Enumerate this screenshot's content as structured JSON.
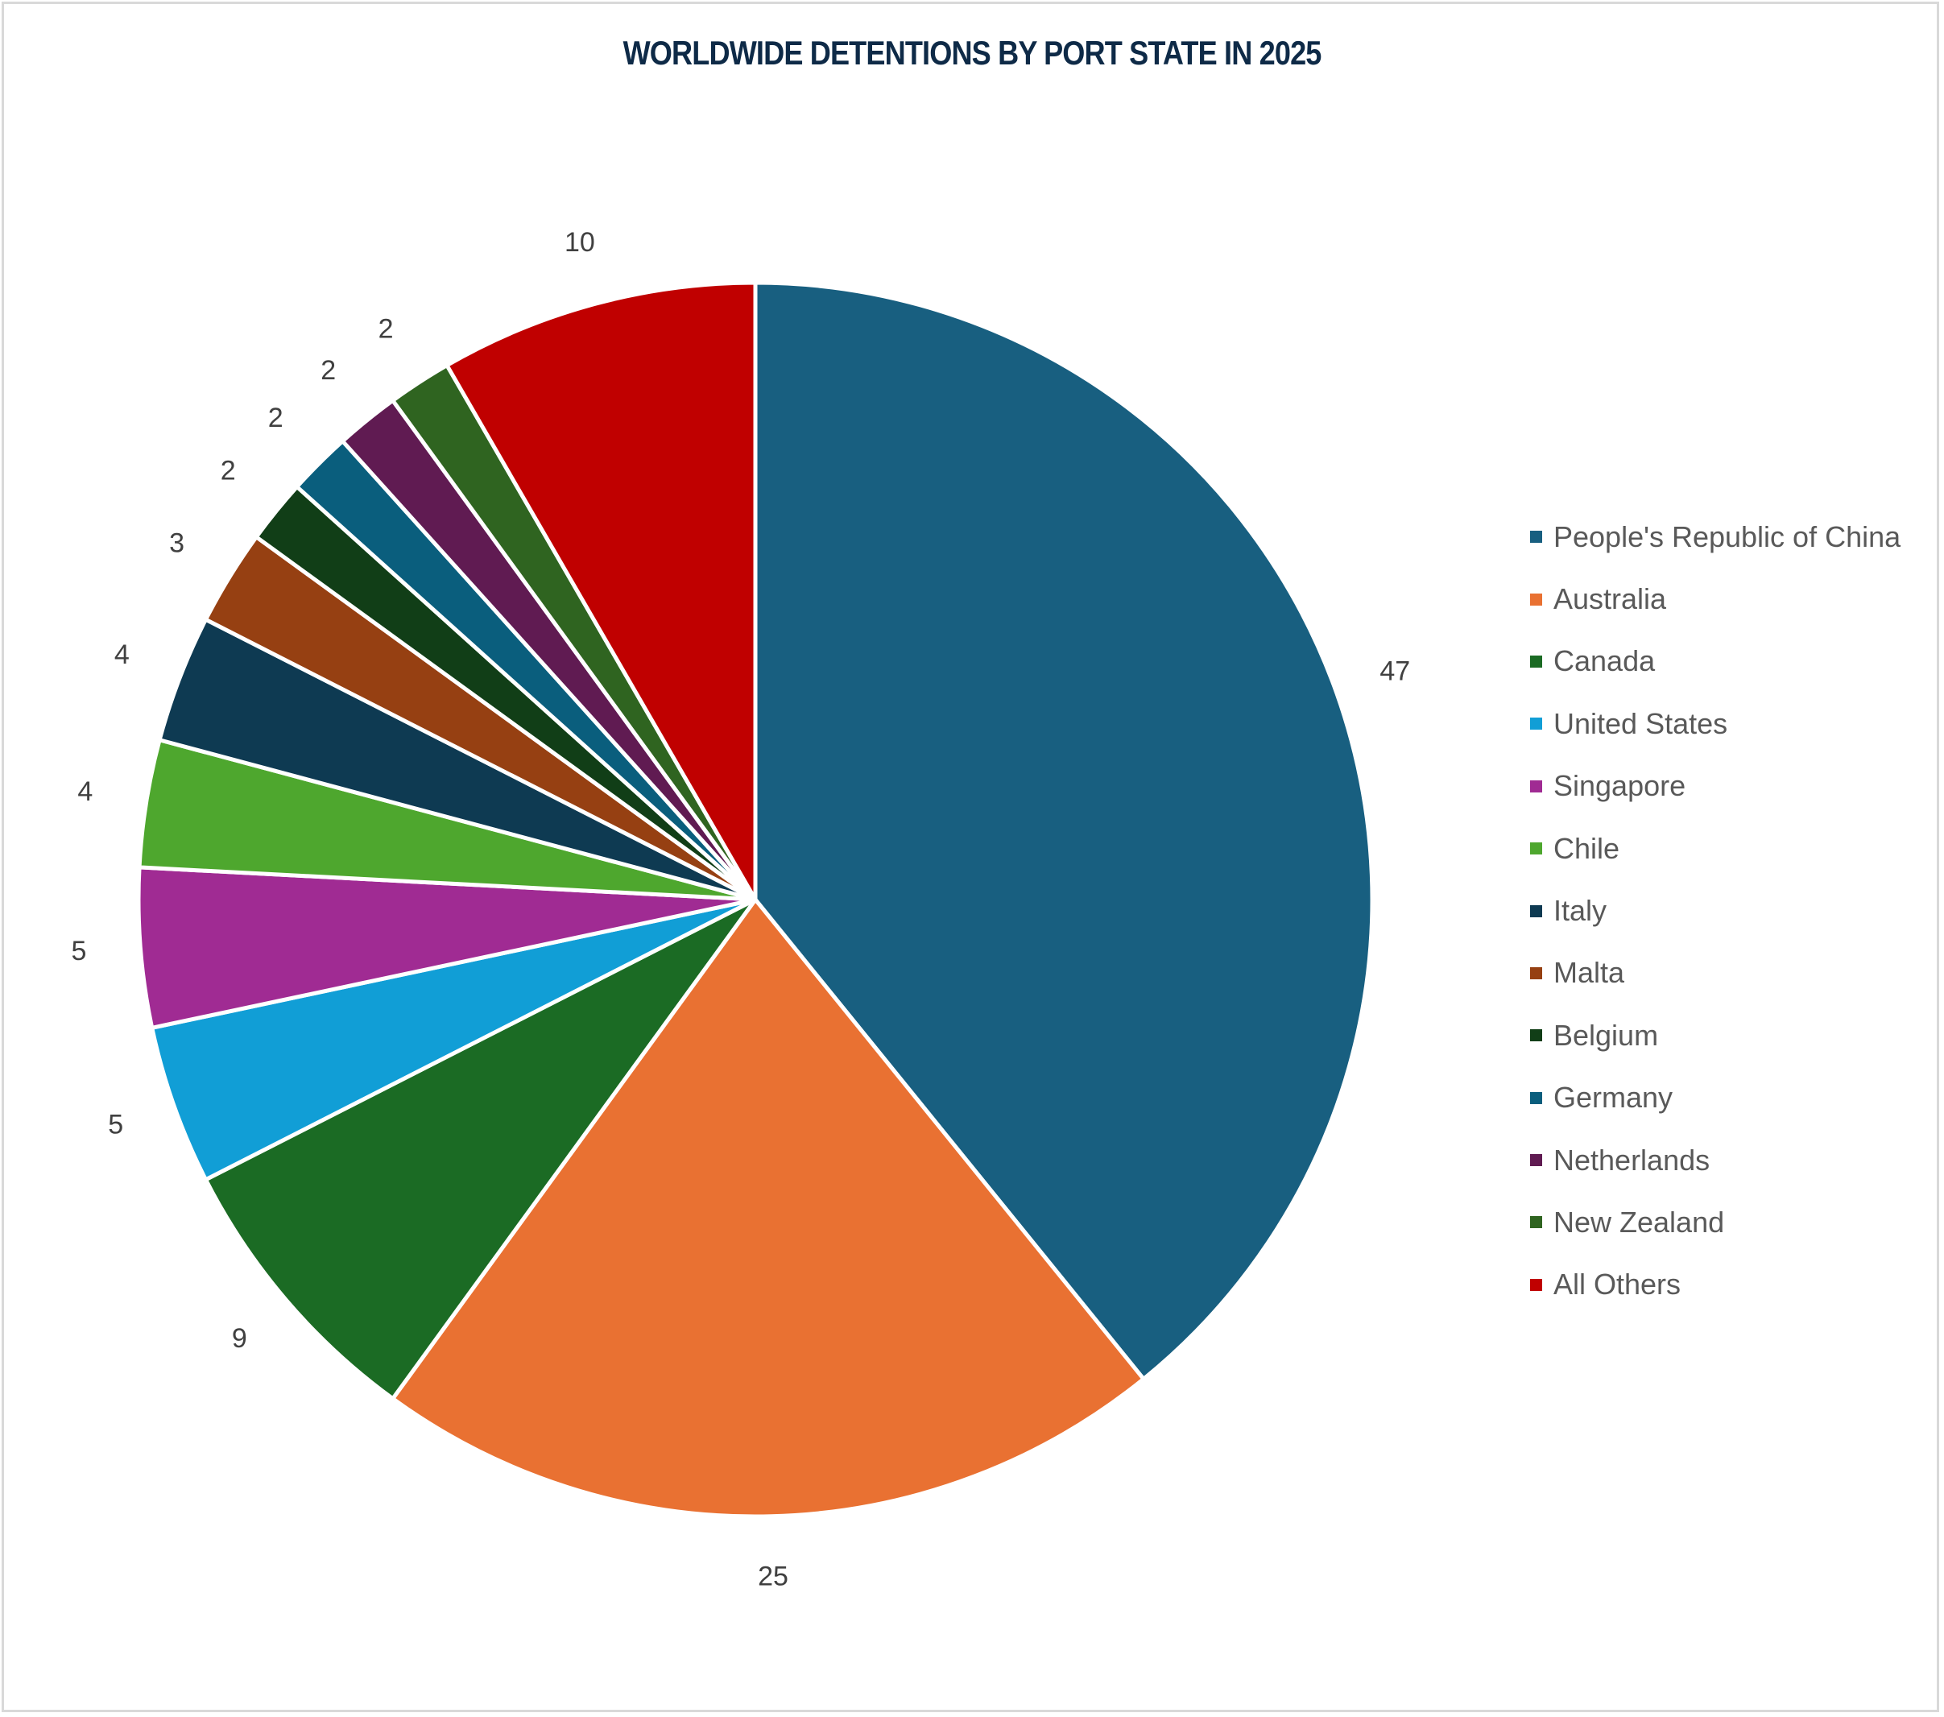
{
  "chart_data": {
    "type": "pie",
    "title": "WORLDWIDE DETENTIONS BY PORT STATE IN 2025",
    "legend_position": "right",
    "categories": [
      "People's Republic of China",
      "Australia",
      "Canada",
      "United States",
      "Singapore",
      "Chile",
      "Italy",
      "Malta",
      "Belgium",
      "Germany",
      "Netherlands",
      "New Zealand",
      "All Others"
    ],
    "values": [
      47,
      25,
      9,
      5,
      5,
      4,
      4,
      3,
      2,
      2,
      2,
      2,
      10
    ],
    "colors": [
      "#185f80",
      "#e97132",
      "#1b6b24",
      "#119ed6",
      "#a02b93",
      "#4ea72e",
      "#0e3a52",
      "#964012",
      "#113e17",
      "#0a5e7d",
      "#601b52",
      "#2f6420",
      "#c00000"
    ],
    "data_labels": [
      "47",
      "25",
      "9",
      "5",
      "5",
      "4",
      "4",
      "3",
      "2",
      "2",
      "2",
      "2",
      "10"
    ]
  }
}
